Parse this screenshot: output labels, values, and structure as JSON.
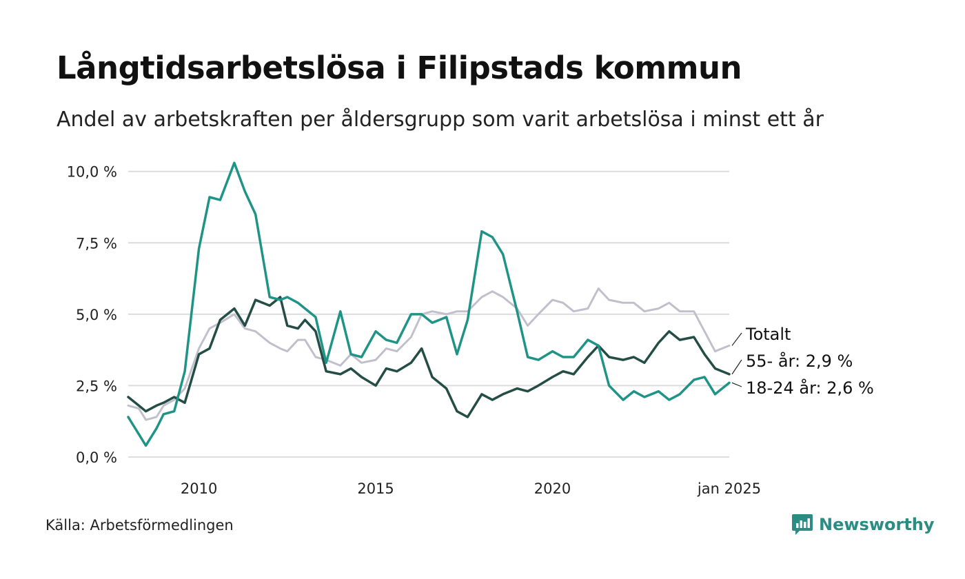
{
  "title": "Långtidsarbetslösa i Filipstads kommun",
  "subtitle": "Andel av arbetskraften per åldersgrupp som varit arbetslösa i minst ett år",
  "source": "Källa: Arbetsförmedlingen",
  "brand": {
    "name": "Newsworthy",
    "color": "#2a8c83",
    "logo_icon": "newsworthy-logo-icon"
  },
  "chart_data": {
    "type": "line",
    "title": "Långtidsarbetslösa i Filipstads kommun",
    "xlabel": "",
    "ylabel": "",
    "x_range": [
      2008.0,
      2025.0
    ],
    "ylim": [
      0,
      10.5
    ],
    "grid": true,
    "y_ticks": [
      {
        "value": 0,
        "label": "0,0 %"
      },
      {
        "value": 2.5,
        "label": "2,5 %"
      },
      {
        "value": 5,
        "label": "5,0 %"
      },
      {
        "value": 7.5,
        "label": "7,5 %"
      },
      {
        "value": 10,
        "label": "10,0 %"
      }
    ],
    "x_ticks": [
      {
        "value": 2010,
        "label": "2010"
      },
      {
        "value": 2015,
        "label": "2015"
      },
      {
        "value": 2020,
        "label": "2020"
      },
      {
        "value": 2025,
        "label": "jan 2025"
      }
    ],
    "series": [
      {
        "name": "Totalt",
        "label": "Totalt",
        "color": "#c2bfcc",
        "x": [
          2008.0,
          2008.3,
          2008.5,
          2008.8,
          2009.0,
          2009.3,
          2009.6,
          2010.0,
          2010.3,
          2010.6,
          2011.0,
          2011.3,
          2011.6,
          2012.0,
          2012.3,
          2012.5,
          2012.8,
          2013.0,
          2013.3,
          2013.6,
          2014.0,
          2014.3,
          2014.6,
          2015.0,
          2015.3,
          2015.6,
          2016.0,
          2016.3,
          2016.6,
          2017.0,
          2017.3,
          2017.6,
          2018.0,
          2018.3,
          2018.6,
          2019.0,
          2019.3,
          2019.6,
          2020.0,
          2020.3,
          2020.6,
          2021.0,
          2021.3,
          2021.6,
          2022.0,
          2022.3,
          2022.6,
          2023.0,
          2023.3,
          2023.6,
          2024.0,
          2024.3,
          2024.6,
          2025.0
        ],
        "values": [
          1.8,
          1.7,
          1.3,
          1.4,
          1.8,
          2.0,
          2.4,
          3.8,
          4.5,
          4.7,
          5.0,
          4.5,
          4.4,
          4.0,
          3.8,
          3.7,
          4.1,
          4.1,
          3.5,
          3.4,
          3.2,
          3.6,
          3.3,
          3.4,
          3.8,
          3.7,
          4.2,
          5.0,
          5.1,
          5.0,
          5.1,
          5.1,
          5.6,
          5.8,
          5.6,
          5.2,
          4.6,
          5.0,
          5.5,
          5.4,
          5.1,
          5.2,
          5.9,
          5.5,
          5.4,
          5.4,
          5.1,
          5.2,
          5.4,
          5.1,
          5.1,
          4.4,
          3.7,
          3.9
        ]
      },
      {
        "name": "55- år",
        "label": "55- år: 2,9 %",
        "color": "#234d45",
        "x": [
          2008.0,
          2008.3,
          2008.5,
          2008.8,
          2009.0,
          2009.3,
          2009.6,
          2010.0,
          2010.3,
          2010.6,
          2011.0,
          2011.3,
          2011.6,
          2012.0,
          2012.3,
          2012.5,
          2012.8,
          2013.0,
          2013.3,
          2013.6,
          2014.0,
          2014.3,
          2014.6,
          2015.0,
          2015.3,
          2015.6,
          2016.0,
          2016.3,
          2016.6,
          2017.0,
          2017.3,
          2017.6,
          2018.0,
          2018.3,
          2018.6,
          2019.0,
          2019.3,
          2019.6,
          2020.0,
          2020.3,
          2020.6,
          2021.0,
          2021.3,
          2021.6,
          2022.0,
          2022.3,
          2022.6,
          2023.0,
          2023.3,
          2023.6,
          2024.0,
          2024.3,
          2024.6,
          2025.0
        ],
        "values": [
          2.1,
          1.8,
          1.6,
          1.8,
          1.9,
          2.1,
          1.9,
          3.6,
          3.8,
          4.8,
          5.2,
          4.6,
          5.5,
          5.3,
          5.6,
          4.6,
          4.5,
          4.8,
          4.4,
          3.0,
          2.9,
          3.1,
          2.8,
          2.5,
          3.1,
          3.0,
          3.3,
          3.8,
          2.8,
          2.4,
          1.6,
          1.4,
          2.2,
          2.0,
          2.2,
          2.4,
          2.3,
          2.5,
          2.8,
          3.0,
          2.9,
          3.5,
          3.9,
          3.5,
          3.4,
          3.5,
          3.3,
          4.0,
          4.4,
          4.1,
          4.2,
          3.6,
          3.1,
          2.9
        ]
      },
      {
        "name": "18-24 år",
        "label": "18-24 år: 2,6 %",
        "color": "#1f9486",
        "x": [
          2008.0,
          2008.3,
          2008.5,
          2008.8,
          2009.0,
          2009.3,
          2009.6,
          2010.0,
          2010.3,
          2010.6,
          2011.0,
          2011.3,
          2011.6,
          2012.0,
          2012.3,
          2012.5,
          2012.8,
          2013.0,
          2013.3,
          2013.6,
          2014.0,
          2014.3,
          2014.6,
          2015.0,
          2015.3,
          2015.6,
          2016.0,
          2016.3,
          2016.6,
          2017.0,
          2017.3,
          2017.6,
          2018.0,
          2018.3,
          2018.6,
          2019.0,
          2019.3,
          2019.6,
          2020.0,
          2020.3,
          2020.6,
          2021.0,
          2021.3,
          2021.6,
          2022.0,
          2022.3,
          2022.6,
          2023.0,
          2023.3,
          2023.6,
          2024.0,
          2024.3,
          2024.6,
          2025.0
        ],
        "values": [
          1.4,
          0.8,
          0.4,
          1.0,
          1.5,
          1.6,
          3.0,
          7.3,
          9.1,
          9.0,
          10.3,
          9.3,
          8.5,
          5.6,
          5.5,
          5.6,
          5.4,
          5.2,
          4.9,
          3.3,
          5.1,
          3.6,
          3.5,
          4.4,
          4.1,
          4.0,
          5.0,
          5.0,
          4.7,
          4.9,
          3.6,
          4.8,
          7.9,
          7.7,
          7.1,
          5.1,
          3.5,
          3.4,
          3.7,
          3.5,
          3.5,
          4.1,
          3.9,
          2.5,
          2.0,
          2.3,
          2.1,
          2.3,
          2.0,
          2.2,
          2.7,
          2.8,
          2.2,
          2.6
        ]
      }
    ]
  }
}
